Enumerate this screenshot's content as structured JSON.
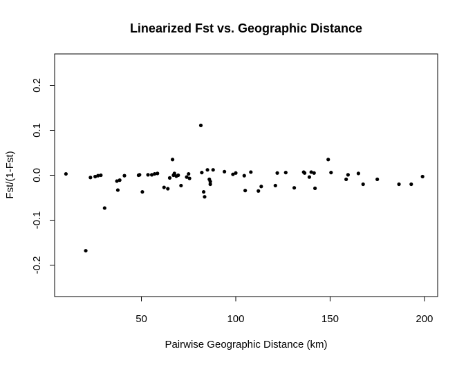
{
  "chart_data": {
    "type": "scatter",
    "title": "Linearized Fst vs. Geographic Distance",
    "xlabel": "Pairwise Geographic Distance (km)",
    "ylabel": "Fst/(1-Fst)",
    "xlim": [
      4,
      207
    ],
    "ylim": [
      -0.27,
      0.27
    ],
    "xticks": [
      50,
      100,
      150,
      200
    ],
    "xtick_labels": [
      "50",
      "100",
      "150",
      "200"
    ],
    "yticks": [
      -0.2,
      -0.1,
      0.0,
      0.1,
      0.2
    ],
    "ytick_labels": [
      "-0.2",
      "-0.1",
      "0.0",
      "0.1",
      "0.2"
    ],
    "grid": false,
    "legend": "none",
    "marker_color": "#000000",
    "points": [
      [
        10,
        0.003
      ],
      [
        20.5,
        -0.168
      ],
      [
        23,
        -0.005
      ],
      [
        25.5,
        -0.003
      ],
      [
        27,
        -0.001
      ],
      [
        28.5,
        0.0
      ],
      [
        30.5,
        -0.073
      ],
      [
        37,
        -0.013
      ],
      [
        37.5,
        -0.033
      ],
      [
        38.5,
        -0.011
      ],
      [
        41,
        -0.001
      ],
      [
        48.5,
        0.0
      ],
      [
        49,
        0.001
      ],
      [
        50.5,
        -0.037
      ],
      [
        53.5,
        0.001
      ],
      [
        55.5,
        0.001
      ],
      [
        57,
        0.003
      ],
      [
        58.5,
        0.004
      ],
      [
        62,
        -0.027
      ],
      [
        64,
        -0.03
      ],
      [
        65,
        -0.006
      ],
      [
        66.5,
        0.035
      ],
      [
        67,
        0.0
      ],
      [
        67.5,
        0.004
      ],
      [
        68.5,
        -0.002
      ],
      [
        69.5,
        0.0
      ],
      [
        71,
        -0.023
      ],
      [
        74,
        -0.004
      ],
      [
        75,
        0.003
      ],
      [
        75.5,
        -0.007
      ],
      [
        81.5,
        0.111
      ],
      [
        82,
        0.006
      ],
      [
        83,
        -0.037
      ],
      [
        83.5,
        -0.048
      ],
      [
        85,
        0.012
      ],
      [
        86,
        -0.009
      ],
      [
        86.5,
        -0.014
      ],
      [
        86.5,
        -0.02
      ],
      [
        88,
        0.012
      ],
      [
        94,
        0.008
      ],
      [
        98.5,
        0.002
      ],
      [
        100,
        0.005
      ],
      [
        104.5,
        -0.001
      ],
      [
        105,
        -0.034
      ],
      [
        108,
        0.007
      ],
      [
        112,
        -0.035
      ],
      [
        113.5,
        -0.025
      ],
      [
        121,
        -0.023
      ],
      [
        122,
        0.005
      ],
      [
        126.5,
        0.006
      ],
      [
        131,
        -0.028
      ],
      [
        136,
        0.007
      ],
      [
        136.5,
        0.005
      ],
      [
        139,
        -0.004
      ],
      [
        140,
        0.007
      ],
      [
        141.5,
        0.005
      ],
      [
        142,
        -0.029
      ],
      [
        149,
        0.035
      ],
      [
        150.5,
        0.006
      ],
      [
        158.5,
        -0.009
      ],
      [
        159.5,
        0.001
      ],
      [
        165,
        0.004
      ],
      [
        167.5,
        -0.02
      ],
      [
        175,
        -0.009
      ],
      [
        186.5,
        -0.02
      ],
      [
        193,
        -0.02
      ],
      [
        199,
        -0.003
      ]
    ]
  }
}
